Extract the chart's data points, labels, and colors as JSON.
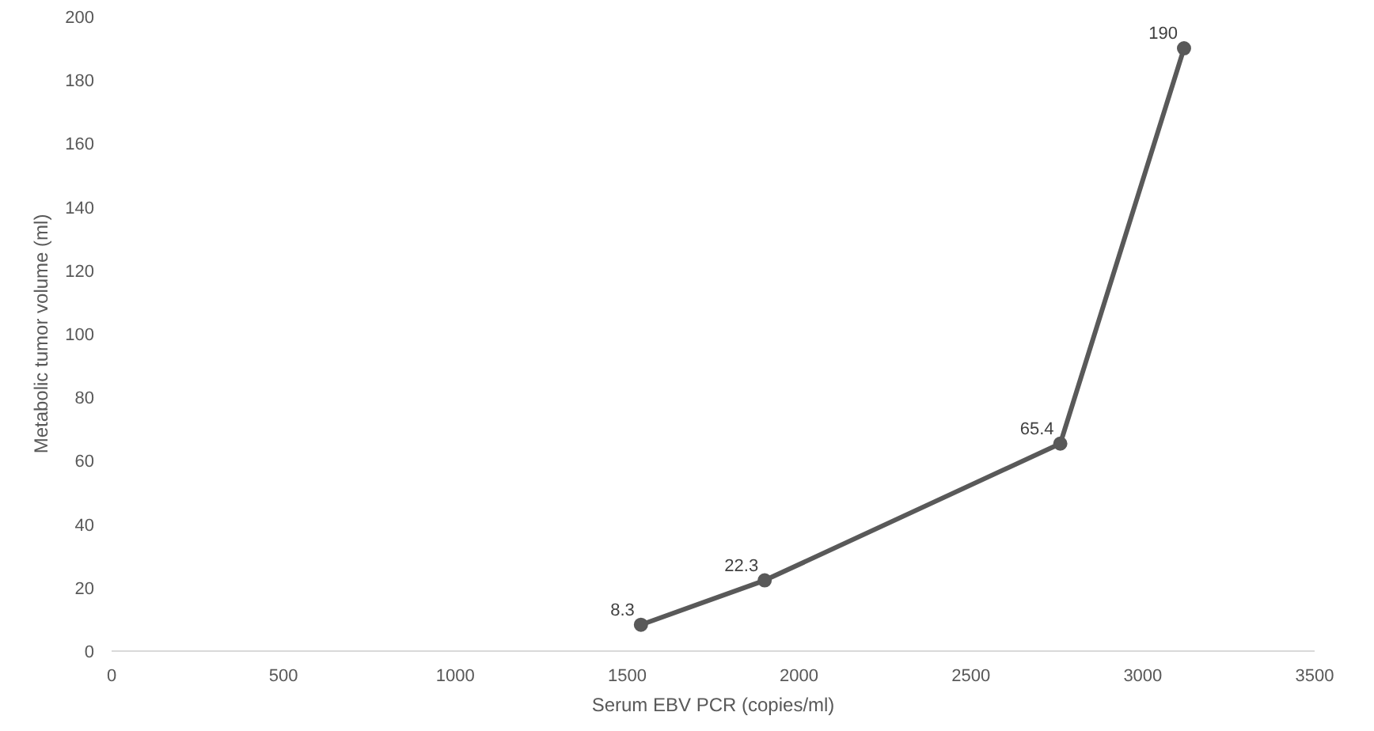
{
  "chart_data": {
    "type": "line",
    "xlabel": "Serum EBV PCR (copies/ml)",
    "ylabel": "Metabolic tumor volume (ml)",
    "x": [
      1540,
      1900,
      2760,
      3120
    ],
    "series": [
      {
        "color": "#595959",
        "values": [
          8.3,
          22.3,
          65.4,
          190
        ]
      }
    ],
    "xlim": [
      0,
      3500
    ],
    "xticks": [
      0,
      500,
      1000,
      1500,
      2000,
      2500,
      3000,
      3500
    ],
    "ylim": [
      0,
      200
    ],
    "yticks": [
      0,
      20,
      40,
      60,
      80,
      100,
      120,
      140,
      160,
      180,
      200
    ],
    "data_labels": true,
    "marker": "circle",
    "grid": false
  }
}
